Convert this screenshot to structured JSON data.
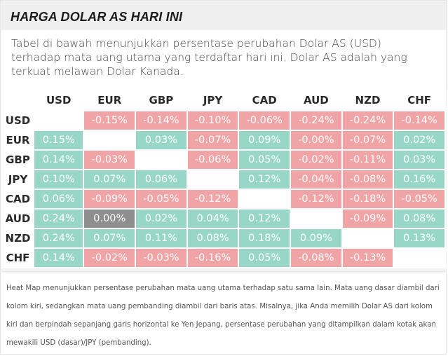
{
  "header": {
    "title": "HARGA DOLAR AS HARI INI"
  },
  "description": "Tabel di bawah menunjukkan persentase perubahan Dolar AS (USD) terhadap mata uang utama yang terdaftar hari ini. Dolar AS adalah yang terkuat melawan Dolar Kanada.",
  "heatmap": {
    "columns": [
      "USD",
      "EUR",
      "GBP",
      "JPY",
      "CAD",
      "AUD",
      "NZD",
      "CHF"
    ],
    "rows": [
      {
        "label": "USD",
        "cells": [
          "",
          "-0.15%",
          "-0.14%",
          "-0.10%",
          "-0.06%",
          "-0.24%",
          "-0.24%",
          "-0.14%"
        ]
      },
      {
        "label": "EUR",
        "cells": [
          "0.15%",
          "",
          "0.03%",
          "-0.07%",
          "0.09%",
          "-0.00%",
          "-0.07%",
          "0.02%"
        ]
      },
      {
        "label": "GBP",
        "cells": [
          "0.14%",
          "-0.03%",
          "",
          "-0.06%",
          "0.05%",
          "-0.02%",
          "-0.11%",
          "0.03%"
        ]
      },
      {
        "label": "JPY",
        "cells": [
          "0.10%",
          "0.07%",
          "0.06%",
          "",
          "0.12%",
          "-0.04%",
          "-0.08%",
          "0.16%"
        ]
      },
      {
        "label": "CAD",
        "cells": [
          "0.06%",
          "-0.09%",
          "-0.05%",
          "-0.12%",
          "",
          "-0.12%",
          "-0.18%",
          "-0.05%"
        ]
      },
      {
        "label": "AUD",
        "cells": [
          "0.24%",
          "0.00%",
          "0.02%",
          "0.04%",
          "0.12%",
          "",
          "-0.09%",
          "0.08%"
        ]
      },
      {
        "label": "NZD",
        "cells": [
          "0.24%",
          "0.07%",
          "0.11%",
          "0.08%",
          "0.18%",
          "0.09%",
          "",
          "0.13%"
        ]
      },
      {
        "label": "CHF",
        "cells": [
          "0.14%",
          "-0.02%",
          "-0.03%",
          "-0.16%",
          "0.05%",
          "-0.08%",
          "-0.13%",
          ""
        ]
      }
    ],
    "colors": {
      "positive": "#98d7c8",
      "negative": "#f0a4a6",
      "zero": "#8e8e8e"
    }
  },
  "footer": "Heat Map menunjukkan persentase perubahan mata uang utama terhadap satu sama lain. Mata uang dasar diambil dari kolom kiri, sedangkan mata uang pembanding diambil dari baris atas. Misalnya, jika Anda memilih Dolar AS dari kolom kiri dan berpindah sepanjang garis horizontal ke Yen Jepang, persentase perubahan yang ditampilkan dalam kotak akan mewakili USD (dasar)/JPY (pembanding)."
}
